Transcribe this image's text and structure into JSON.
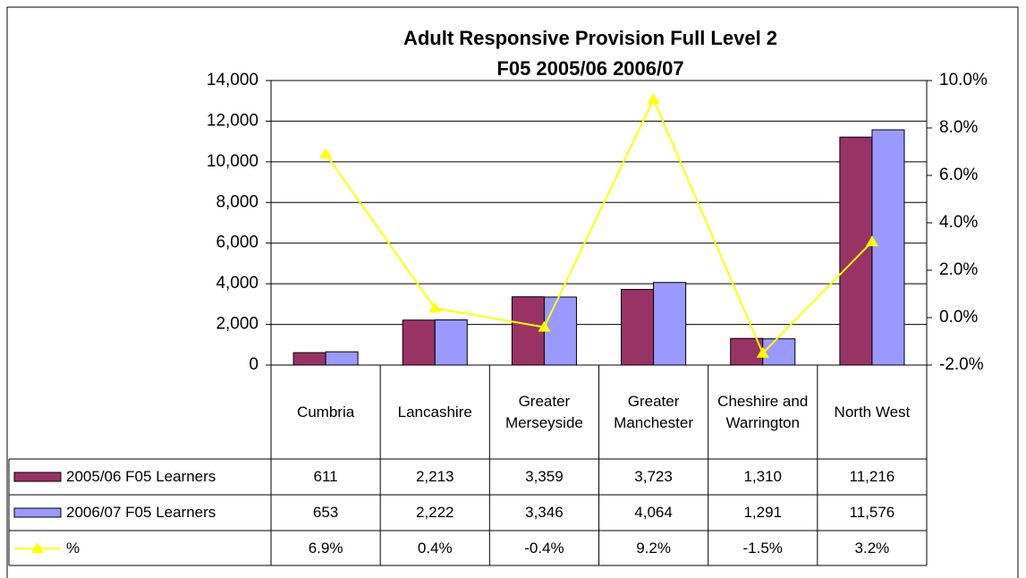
{
  "chart_data": {
    "type": "bar",
    "title": [
      "Adult Responsive Provision Full Level 2",
      "F05 2005/06 2006/07"
    ],
    "categories": [
      "Cumbria",
      "Lancashire",
      "Greater Merseyside",
      "Greater Manchester",
      "Cheshire and Warrington",
      "North West"
    ],
    "series": [
      {
        "name": "2005/06 F05 Learners",
        "type": "bar",
        "color": "#993366",
        "values": [
          611,
          2213,
          3359,
          3723,
          1310,
          11216
        ],
        "value_labels": [
          "611",
          "2,213",
          "3,359",
          "3,723",
          "1,310",
          "11,216"
        ]
      },
      {
        "name": "2006/07 F05 Learners",
        "type": "bar",
        "color": "#9999ff",
        "values": [
          653,
          2222,
          3346,
          4064,
          1291,
          11576
        ],
        "value_labels": [
          "653",
          "2,222",
          "3,346",
          "4,064",
          "1,291",
          "11,576"
        ]
      },
      {
        "name": "%",
        "type": "line",
        "axis": "y2",
        "color": "#ffff00",
        "values": [
          6.9,
          0.4,
          -0.4,
          9.2,
          -1.5,
          3.2
        ],
        "value_labels": [
          "6.9%",
          "0.4%",
          "-0.4%",
          "9.2%",
          "-1.5%",
          "3.2%"
        ]
      }
    ],
    "ylim": [
      0,
      14000
    ],
    "yticks": [
      0,
      {
        "value": 2000,
        "label": "2,000"
      },
      {
        "value": 4000,
        "label": "4,000"
      },
      {
        "value": 6000,
        "label": "6,000"
      },
      {
        "value": 8000,
        "label": "8,000"
      },
      {
        "value": 10000,
        "label": "10,000"
      },
      {
        "value": 12000,
        "label": "12,000"
      },
      {
        "value": 14000,
        "label": "14,000"
      }
    ],
    "y2lim": [
      -2,
      10
    ],
    "y2ticks": [
      {
        "value": -2,
        "label": "-2.0%"
      },
      {
        "value": 0,
        "label": "0.0%"
      },
      {
        "value": 2,
        "label": "2.0%"
      },
      {
        "value": 4,
        "label": "4.0%"
      },
      {
        "value": 6,
        "label": "6.0%"
      },
      {
        "value": 8,
        "label": "8.0%"
      },
      {
        "value": 10,
        "label": "10.0%"
      }
    ],
    "grid": true
  }
}
